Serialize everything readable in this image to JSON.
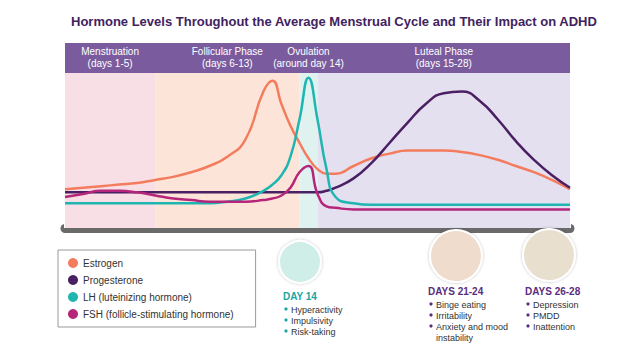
{
  "chart_data": {
    "type": "line",
    "title": "Hormone Levels Throughout the Average Menstrual Cycle and Their Impact on ADHD",
    "x": [
      0,
      1,
      2,
      3,
      4,
      5,
      6,
      7,
      8,
      9,
      10,
      11,
      11.5,
      12,
      12.5,
      13,
      13.5,
      14,
      14.5,
      15,
      16,
      17,
      18,
      19,
      20,
      21,
      22,
      23,
      24,
      25,
      26,
      27,
      28
    ],
    "series": [
      {
        "name": "Estrogen",
        "color": "#f47c5e",
        "values": [
          25,
          26,
          27,
          28,
          29,
          31,
          33,
          36,
          40,
          46,
          57,
          88,
          95,
          80,
          66,
          55,
          45,
          38,
          35,
          35,
          40,
          45,
          48,
          50,
          50,
          50,
          49,
          47,
          44,
          40,
          36,
          31,
          25
        ]
      },
      {
        "name": "Progesterone",
        "color": "#4a1f63",
        "values": [
          23,
          23,
          23,
          23,
          23,
          23,
          23,
          23,
          23,
          23,
          23,
          23,
          23,
          23,
          23,
          23,
          23,
          23,
          24,
          26,
          32,
          42,
          55,
          68,
          80,
          87,
          88,
          82,
          70,
          56,
          44,
          34,
          26
        ]
      },
      {
        "name": "LH (luteinizing hormone)",
        "color": "#1fb5b0",
        "values": [
          16,
          16,
          16,
          16,
          16,
          16,
          16,
          16,
          16,
          17,
          19,
          24,
          28,
          34,
          46,
          70,
          97,
          70,
          38,
          20,
          16,
          15,
          15,
          15,
          15,
          15,
          15,
          15,
          15,
          15,
          15,
          15,
          15
        ]
      },
      {
        "name": "FSH (follicle-stimulating hormone)",
        "color": "#b5267b",
        "values": [
          20,
          22,
          24,
          24,
          23,
          21,
          19,
          18,
          17,
          17,
          17,
          18,
          19,
          21,
          26,
          36,
          40,
          22,
          14,
          13,
          12,
          12,
          12,
          12,
          12,
          12,
          12,
          12,
          12,
          12,
          12,
          12,
          12
        ]
      }
    ],
    "xlim": [
      0,
      28
    ],
    "xticks": [
      0,
      1,
      2,
      3,
      4,
      5,
      6,
      7,
      8,
      9,
      10,
      11,
      12,
      13,
      14,
      15,
      16,
      17,
      18,
      19,
      20,
      21,
      22,
      23,
      24,
      25,
      26,
      27,
      28
    ],
    "ylim": [
      0,
      100
    ],
    "grid": false,
    "tick_labels": false,
    "legend": "bottom-left",
    "phases": [
      {
        "name": "Menstruation",
        "days": "(days 1-5)",
        "start": 0,
        "end": 5,
        "color": "#f8dfe5"
      },
      {
        "name": "Follicular Phase",
        "days": "(days 6-13)",
        "start": 5,
        "end": 13,
        "color": "#fde4d8"
      },
      {
        "name": "Ovulation",
        "days": "(around day 14)",
        "start": 13,
        "end": 14,
        "color": "#e0f2ef"
      },
      {
        "name": "Luteal Phase",
        "days": "(days 15-28)",
        "start": 14,
        "end": 28,
        "color": "#e5e0f0"
      }
    ],
    "annotations": [
      {
        "title": "DAY 14",
        "items": [
          "Hyperactivity",
          "Impulsivity",
          "Risk-taking"
        ],
        "color": "#1aa6a0"
      },
      {
        "title": "DAYS 21-24",
        "items": [
          "Binge eating",
          "Irritability",
          "Anxiety and mood instability"
        ],
        "color": "#5b2d7e"
      },
      {
        "title": "DAYS 26-28",
        "items": [
          "Depression",
          "PMDD",
          "Inattention"
        ],
        "color": "#5b2d7e"
      }
    ]
  }
}
